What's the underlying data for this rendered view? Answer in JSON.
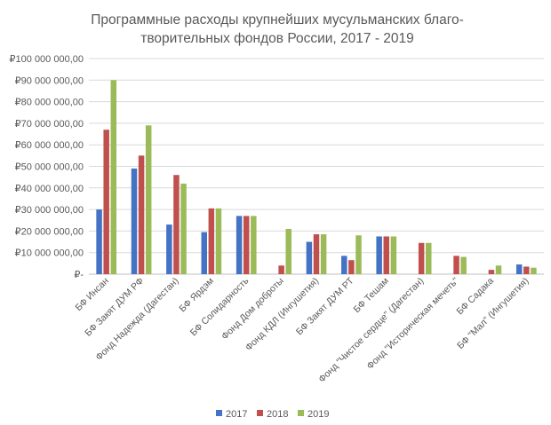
{
  "chart_data": {
    "type": "bar",
    "title_lines": [
      "Программные расходы крупнейших мусульманских благо-",
      "творительных фондов России, 2017 - 2019"
    ],
    "xlabel": "",
    "ylabel": "",
    "ylim": [
      0,
      100000000
    ],
    "y_tick_values": [
      0,
      10000000,
      20000000,
      30000000,
      40000000,
      50000000,
      60000000,
      70000000,
      80000000,
      90000000,
      100000000
    ],
    "y_tick_labels": [
      "₽-",
      "₽10 000 000,00",
      "₽20 000 000,00",
      "₽30 000 000,00",
      "₽40 000 000,00",
      "₽50 000 000,00",
      "₽60 000 000,00",
      "₽70 000 000,00",
      "₽80 000 000,00",
      "₽90 000 000,00",
      "₽100 000 000,00"
    ],
    "grid": true,
    "legend_position": "bottom",
    "categories": [
      "БФ Инсан",
      "БФ Закят ДУМ РФ",
      "Фонд Надежда (Дагестан)",
      "БФ Ярдэм",
      "БФ Солидарность",
      "Фонд Дом доброты",
      "Фонд КДЛ (Ингушетия)",
      "БФ Закят ДУМ РТ",
      "БФ Тешам",
      "Фонд \"Чистое сердце\" (Дагестан)",
      "Фонд \"Историческая мечеть\"",
      "БФ Садака",
      "БФ \"Мал\" (Ингушетия)"
    ],
    "series": [
      {
        "name": "2017",
        "color": "#4472c4",
        "values": [
          30000000,
          49000000,
          23000000,
          19500000,
          27000000,
          0,
          15000000,
          8500000,
          17500000,
          0,
          0,
          0,
          4500000
        ]
      },
      {
        "name": "2018",
        "color": "#c0504d",
        "values": [
          67000000,
          55000000,
          46000000,
          30500000,
          27000000,
          4000000,
          18500000,
          6500000,
          17500000,
          14500000,
          8500000,
          2000000,
          3500000
        ]
      },
      {
        "name": "2019",
        "color": "#9bbb59",
        "values": [
          90000000,
          69000000,
          42000000,
          30500000,
          27000000,
          21000000,
          18500000,
          18000000,
          17500000,
          14500000,
          8000000,
          4000000,
          3000000
        ]
      }
    ]
  }
}
